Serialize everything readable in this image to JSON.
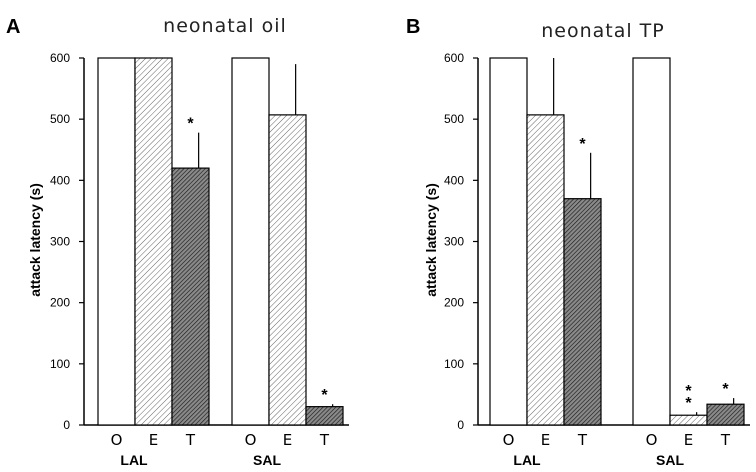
{
  "chart_data": [
    {
      "type": "bar",
      "panel_label": "A",
      "title": "neonatal oil",
      "ylabel": "attack latency (s)",
      "ylim": [
        0,
        600
      ],
      "yticks": [
        0,
        100,
        200,
        300,
        400,
        500,
        600
      ],
      "groups": [
        {
          "label": "LAL",
          "bars": [
            {
              "category": "O",
              "value": 600,
              "error": 0,
              "sig": ""
            },
            {
              "category": "E",
              "value": 600,
              "error": 0,
              "sig": ""
            },
            {
              "category": "T",
              "value": 420,
              "error": 58,
              "sig": "*"
            }
          ]
        },
        {
          "label": "SAL",
          "bars": [
            {
              "category": "O",
              "value": 600,
              "error": 0,
              "sig": ""
            },
            {
              "category": "E",
              "value": 507,
              "error": 83,
              "sig": ""
            },
            {
              "category": "T",
              "value": 30,
              "error": 4,
              "sig": "*"
            }
          ]
        }
      ]
    },
    {
      "type": "bar",
      "panel_label": "B",
      "title": "neonatal TP",
      "ylabel": "attack latency (s)",
      "ylim": [
        0,
        600
      ],
      "yticks": [
        0,
        100,
        200,
        300,
        400,
        500,
        600
      ],
      "groups": [
        {
          "label": "LAL",
          "bars": [
            {
              "category": "O",
              "value": 600,
              "error": 0,
              "sig": ""
            },
            {
              "category": "E",
              "value": 507,
              "error": 93,
              "sig": ""
            },
            {
              "category": "T",
              "value": 370,
              "error": 75,
              "sig": "*"
            }
          ]
        },
        {
          "label": "SAL",
          "bars": [
            {
              "category": "O",
              "value": 600,
              "error": 0,
              "sig": ""
            },
            {
              "category": "E",
              "value": 16,
              "error": 5,
              "sig": "**"
            },
            {
              "category": "T",
              "value": 34,
              "error": 10,
              "sig": "*"
            }
          ]
        }
      ]
    }
  ]
}
